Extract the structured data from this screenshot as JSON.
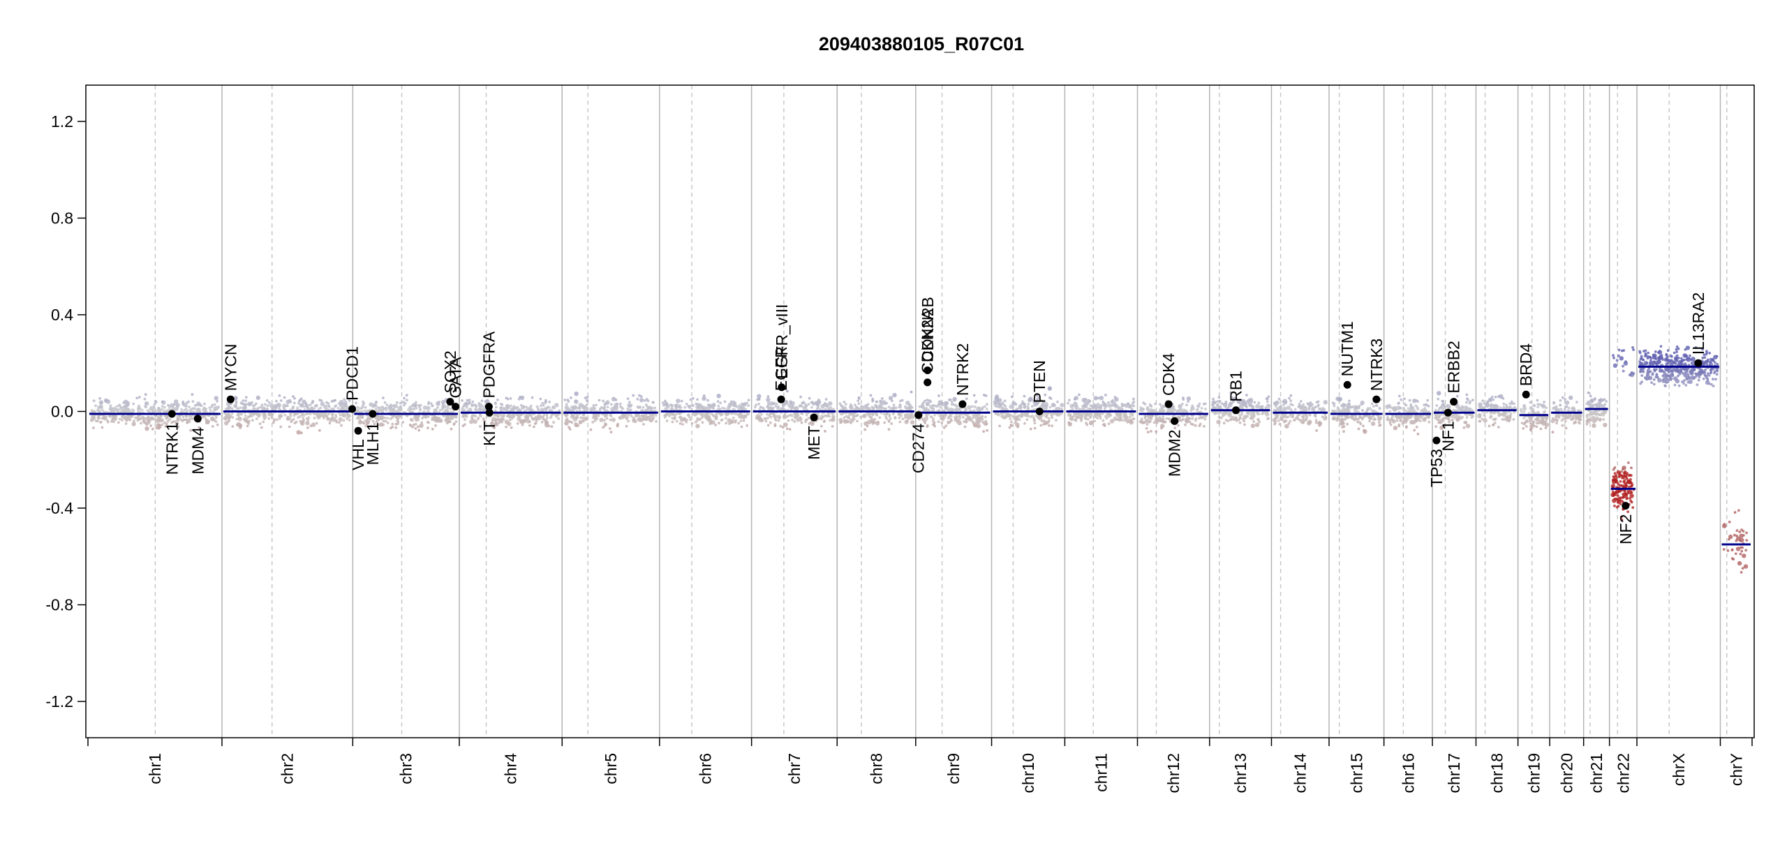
{
  "chart_data": {
    "type": "scatter",
    "title": "209403880105_R07C01",
    "xlabel": "",
    "ylabel": "",
    "ylim": [
      -1.35,
      1.35
    ],
    "y_ticks": [
      -1.2,
      -0.8,
      -0.4,
      0.0,
      0.4,
      0.8,
      1.2
    ],
    "y_tick_labels": [
      "-1.2",
      "-0.8",
      "-0.4",
      "0.0",
      "0.4",
      "0.8",
      "1.2"
    ],
    "grid": false,
    "colors": {
      "gain": "#5f5fb0",
      "loss": "#b06060",
      "neutral": "#c0c0c0",
      "segment": "#00008b",
      "chrom_boundary": "#b4b4b4",
      "centromere": "#c8c8c8",
      "gene_point": "#000000",
      "strong_loss": "#b22222"
    },
    "chromosomes": [
      {
        "name": "chr1",
        "length": 249,
        "centromere": 125,
        "segment": -0.01
      },
      {
        "name": "chr2",
        "length": 243,
        "centromere": 93,
        "segment": 0.0
      },
      {
        "name": "chr3",
        "length": 198,
        "centromere": 91,
        "segment": -0.01
      },
      {
        "name": "chr4",
        "length": 191,
        "centromere": 50,
        "segment": -0.005
      },
      {
        "name": "chr5",
        "length": 181,
        "centromere": 48,
        "segment": -0.005
      },
      {
        "name": "chr6",
        "length": 171,
        "centromere": 60,
        "segment": 0.0
      },
      {
        "name": "chr7",
        "length": 159,
        "centromere": 60,
        "segment": 0.0
      },
      {
        "name": "chr8",
        "length": 146,
        "centromere": 45,
        "segment": 0.0
      },
      {
        "name": "chr9",
        "length": 141,
        "centromere": 49,
        "segment": -0.005
      },
      {
        "name": "chr10",
        "length": 136,
        "centromere": 40,
        "segment": 0.0
      },
      {
        "name": "chr11",
        "length": 135,
        "centromere": 53,
        "segment": 0.0
      },
      {
        "name": "chr12",
        "length": 134,
        "centromere": 35,
        "segment": -0.01
      },
      {
        "name": "chr13",
        "length": 115,
        "centromere": 18,
        "segment": 0.005
      },
      {
        "name": "chr14",
        "length": 107,
        "centromere": 17,
        "segment": -0.005
      },
      {
        "name": "chr15",
        "length": 102,
        "centromere": 19,
        "segment": -0.01
      },
      {
        "name": "chr16",
        "length": 90,
        "centromere": 36,
        "segment": -0.01
      },
      {
        "name": "chr17",
        "length": 81,
        "centromere": 24,
        "segment": -0.005
      },
      {
        "name": "chr18",
        "length": 78,
        "centromere": 17,
        "segment": 0.005
      },
      {
        "name": "chr19",
        "length": 59,
        "centromere": 26,
        "segment": -0.015
      },
      {
        "name": "chr20",
        "length": 63,
        "centromere": 28,
        "segment": -0.005
      },
      {
        "name": "chr21",
        "length": 48,
        "centromere": 12,
        "segment": 0.01
      },
      {
        "name": "chr22",
        "length": 51,
        "centromere": 15,
        "segment": -0.32
      },
      {
        "name": "chrX",
        "length": 155,
        "centromere": 60,
        "segment": 0.185
      },
      {
        "name": "chrY",
        "length": 59,
        "centromere": 12,
        "segment": -0.55
      }
    ],
    "genes": [
      {
        "name": "NTRK1",
        "chr": "chr1",
        "pos": 156,
        "value": -0.01
      },
      {
        "name": "MDM4",
        "chr": "chr1",
        "pos": 204,
        "value": -0.03
      },
      {
        "name": "MYCN",
        "chr": "chr2",
        "pos": 16,
        "value": 0.05
      },
      {
        "name": "PDCD1",
        "chr": "chr2",
        "pos": 242,
        "value": 0.01
      },
      {
        "name": "VHL",
        "chr": "chr3",
        "pos": 10,
        "value": -0.08
      },
      {
        "name": "MLH1",
        "chr": "chr3",
        "pos": 37,
        "value": -0.01
      },
      {
        "name": "SOX2",
        "chr": "chr3",
        "pos": 181,
        "value": 0.04
      },
      {
        "name": "GATA",
        "chr": "chr3",
        "pos": 191,
        "value": 0.02
      },
      {
        "name": "PDGFRA",
        "chr": "chr4",
        "pos": 55,
        "value": 0.02
      },
      {
        "name": "KIT",
        "chr": "chr4",
        "pos": 56,
        "value": -0.005
      },
      {
        "name": "EGFR",
        "chr": "chr7",
        "pos": 55,
        "value": 0.05
      },
      {
        "name": "EGFR_vIII",
        "chr": "chr7",
        "pos": 56,
        "value": 0.1
      },
      {
        "name": "MET",
        "chr": "chr7",
        "pos": 116,
        "value": -0.025
      },
      {
        "name": "CD274",
        "chr": "chr9",
        "pos": 5,
        "value": -0.015
      },
      {
        "name": "CDKN2A",
        "chr": "chr9",
        "pos": 21.9,
        "value": 0.12
      },
      {
        "name": "CDKN2B",
        "chr": "chr9",
        "pos": 22.0,
        "value": 0.17
      },
      {
        "name": "NTRK2",
        "chr": "chr9",
        "pos": 87,
        "value": 0.03
      },
      {
        "name": "PTEN",
        "chr": "chr10",
        "pos": 89,
        "value": 0.0
      },
      {
        "name": "CDK4",
        "chr": "chr12",
        "pos": 58,
        "value": 0.03
      },
      {
        "name": "MDM2",
        "chr": "chr12",
        "pos": 69,
        "value": -0.04
      },
      {
        "name": "RB1",
        "chr": "chr13",
        "pos": 49,
        "value": 0.005
      },
      {
        "name": "NUTM1",
        "chr": "chr15",
        "pos": 34,
        "value": 0.11
      },
      {
        "name": "NTRK3",
        "chr": "chr15",
        "pos": 88,
        "value": 0.05
      },
      {
        "name": "TP53",
        "chr": "chr17",
        "pos": 7.6,
        "value": -0.12
      },
      {
        "name": "NF1",
        "chr": "chr17",
        "pos": 29,
        "value": -0.005
      },
      {
        "name": "ERBB2",
        "chr": "chr17",
        "pos": 39.7,
        "value": 0.04
      },
      {
        "name": "BRD4",
        "chr": "chr19",
        "pos": 15,
        "value": 0.07
      },
      {
        "name": "NF2",
        "chr": "chr22",
        "pos": 30,
        "value": -0.39
      },
      {
        "name": "IL13RA2",
        "chr": "chrX",
        "pos": 114,
        "value": 0.2
      }
    ]
  }
}
